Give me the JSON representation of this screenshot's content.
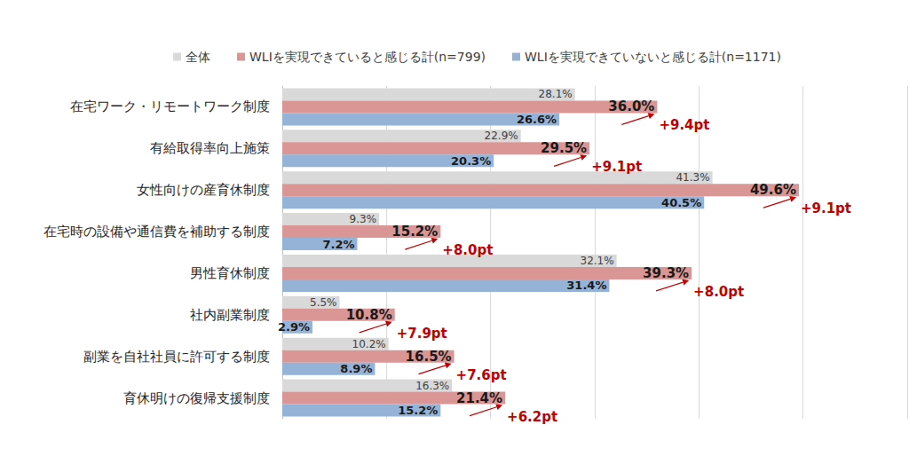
{
  "chart_data": {
    "type": "bar",
    "orientation": "horizontal",
    "categories": [
      "在宅ワーク・リモートワーク制度",
      "有給取得率向上施策",
      "女性向けの産育休制度",
      "在宅時の設備や通信費を補助する制度",
      "男性育休制度",
      "社内副業制度",
      "副業を自社社員に許可する制度",
      "育休明けの復帰支援制度"
    ],
    "series": [
      {
        "name": "全体",
        "color": "#d9d9d9",
        "values": [
          28.1,
          22.9,
          41.3,
          9.3,
          32.1,
          5.5,
          10.2,
          16.3
        ],
        "value_labels": [
          "28.1%",
          "22.9%",
          "41.3%",
          "9.3%",
          "32.1%",
          "5.5%",
          "10.2%",
          "16.3%"
        ]
      },
      {
        "name": "WLIを実現できていると感じる計(n=799)",
        "color": "#da9694",
        "values": [
          36.0,
          29.5,
          49.6,
          15.2,
          39.3,
          10.8,
          16.5,
          21.4
        ],
        "value_labels": [
          "36.0%",
          "29.5%",
          "49.6%",
          "15.2%",
          "39.3%",
          "10.8%",
          "16.5%",
          "21.4%"
        ]
      },
      {
        "name": "WLIを実現できていないと感じる計(n=1171)",
        "color": "#95b3d7",
        "values": [
          26.6,
          20.3,
          40.5,
          7.2,
          31.4,
          2.9,
          8.9,
          15.2
        ],
        "value_labels": [
          "26.6%",
          "20.3%",
          "40.5%",
          "7.2%",
          "31.4%",
          "2.9%",
          "8.9%",
          "15.2%"
        ]
      }
    ],
    "annotations": [
      "+9.4pt",
      "+9.1pt",
      "+9.1pt",
      "+8.0pt",
      "+8.0pt",
      "+7.9pt",
      "+7.6pt",
      "+6.2pt"
    ],
    "xlim": [
      0,
      60
    ],
    "xticks": [
      0,
      10,
      20,
      30,
      40,
      50,
      60
    ],
    "grid": true,
    "legend": "top",
    "data_labels": true,
    "tick_labels": "y"
  }
}
